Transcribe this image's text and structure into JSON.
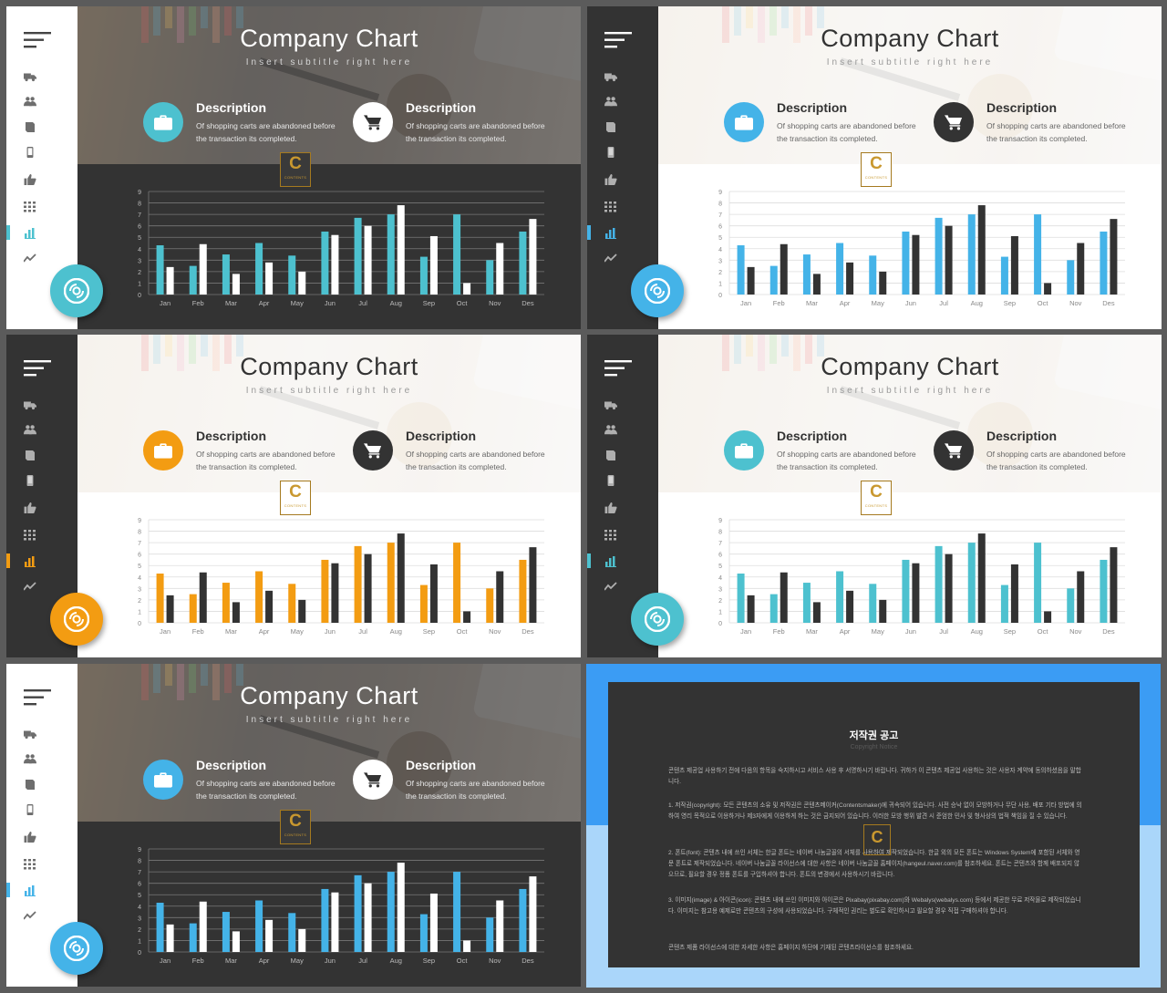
{
  "slides": [
    {
      "theme": "dark",
      "accent": "#4dc1cf",
      "icon2_bg": "#ffffff",
      "icon2_fg": "#333333",
      "series1_color": "#4dc1cf",
      "series2_color": "#ffffff"
    },
    {
      "theme": "light",
      "accent": "#44b3e8",
      "icon2_bg": "#333333",
      "icon2_fg": "#ffffff",
      "series1_color": "#44b3e8",
      "series2_color": "#333333"
    },
    {
      "theme": "light",
      "accent": "#f39c12",
      "icon2_bg": "#333333",
      "icon2_fg": "#ffffff",
      "series1_color": "#f39c12",
      "series2_color": "#333333"
    },
    {
      "theme": "light",
      "accent": "#4dc1cf",
      "icon2_bg": "#333333",
      "icon2_fg": "#ffffff",
      "series1_color": "#4dc1cf",
      "series2_color": "#333333"
    },
    {
      "theme": "dark",
      "accent": "#44b3e8",
      "icon2_bg": "#ffffff",
      "icon2_fg": "#333333",
      "series1_color": "#44b3e8",
      "series2_color": "#ffffff"
    }
  ],
  "slide_text": {
    "title": "Company Chart",
    "subtitle": "Insert subtitle right here",
    "desc1_title": "Description",
    "desc1_text": "Of shopping carts are abandoned before the transaction its completed.",
    "desc2_title": "Description",
    "desc2_text": "Of shopping carts are abandoned before the transaction its completed.",
    "badge_letter": "C",
    "badge_text": "CONTENTS"
  },
  "sidebar_icons": [
    "menu-icon",
    "truck-icon",
    "users-icon",
    "book-icon",
    "phone-icon",
    "thumbs-up-icon",
    "grid-icon",
    "bar-chart-icon",
    "trend-line-icon"
  ],
  "chart_data": {
    "type": "bar",
    "categories": [
      "Jan",
      "Feb",
      "Mar",
      "Apr",
      "May",
      "Jun",
      "Jul",
      "Aug",
      "Sep",
      "Oct",
      "Nov",
      "Des"
    ],
    "y_ticks": [
      "0",
      "1",
      "2",
      "3",
      "4",
      "5",
      "6",
      "7",
      "8",
      "9"
    ],
    "ylim": [
      0,
      9
    ],
    "grid": true,
    "series": [
      {
        "values": [
          4.3,
          2.5,
          3.5,
          4.5,
          3.4,
          5.5,
          6.7,
          7.0,
          3.3,
          7.0,
          3.0,
          5.5
        ]
      },
      {
        "values": [
          2.4,
          4.4,
          1.8,
          2.8,
          2.0,
          5.2,
          6.0,
          7.8,
          5.1,
          1.0,
          4.5,
          6.6
        ]
      }
    ]
  },
  "copyright": {
    "title": "저작권 공고",
    "subtitle": "Copyright Notice",
    "p1": "콘텐츠 제공업 사용하기 전에 다음의 항목을 숙지하시고 서비스 사용 후 서명하시기 바랍니다. 귀하가 이 콘텐츠 제공업 사용하는 것은 사용자 계약에 동의하셨음을 말합니다.",
    "p2": "1. 저작권(copyright): 모든 콘텐츠의 소유 및 저작권은 콘텐츠메이커(Contentsmaker)에 귀속되어 있습니다. 사전 승낙 없이 모방하거나 무단 사용, 배포 기타 방법에 의하여 영리 목적으로 이용하거나 제3자에게 이용하게 하는 것은 금지되어 있습니다. 이러한 모방 행위 발견 시 준엄한 민사 및 형사상의 법적 책임을 질 수 있습니다.",
    "p3": "2. 폰트(font): 콘텐츠 내에 쓰인 서체는 한글 폰트는 네이버 나눔글꼴의 서체를 사용하여 제작되었습니다. 한글 외의 모든 폰트는 Windows System에 포함된 서체와 영문 폰트로 제작되었습니다. 네이버 나눔글꼴 라이선스에 대한 사항은 네이버 나눔글꼴 홈페이지(hangeul.naver.com)를 참조하세요. 폰트는 콘텐츠와 함께 배포되지 않으므로, 필요할 경우 정품 폰트를 구입하셔야 합니다. 폰트의 변경에서 사용하시기 바랍니다.",
    "p4": "3. 이미지(image) & 아이콘(icon): 콘텐츠 내에 쓰인 이미지와 아이콘은 Pixabay(pixabay.com)와 Webalys(webalys.com) 등에서 제공한 무료 저작물로 제작되었습니다. 이미지는 참고용 예제로만 콘텐츠의 구성에 사용되었습니다. 구체적인 권리는 별도로 확인하시고 필요할 경우 직접 구매하셔야 합니다.",
    "p5": "콘텐츠 제품 라이선스에 대한 자세한 사항은 홈페이지 하단에 기재된 콘텐츠라이선스를 참조하세요."
  }
}
